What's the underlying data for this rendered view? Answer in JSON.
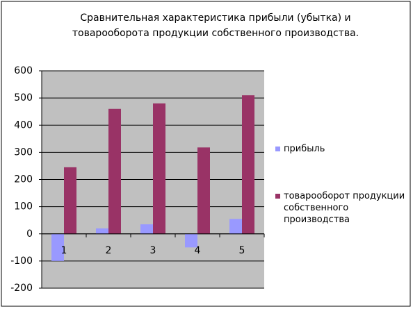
{
  "chart_data": {
    "type": "bar",
    "title": [
      "Сравнительная характеристика прибыли (убытка) и",
      "товарооборота продукции собственного производства."
    ],
    "categories": [
      "1",
      "2",
      "3",
      "4",
      "5"
    ],
    "series": [
      {
        "name": "прибыль",
        "color": "#9999ff",
        "values": [
          -100,
          20,
          35,
          -50,
          55
        ]
      },
      {
        "name": "товарооборот продукции собственного производства",
        "color": "#993366",
        "values": [
          245,
          460,
          480,
          318,
          510
        ]
      }
    ],
    "ylim": [
      -200,
      600
    ],
    "yticks": [
      -200,
      -100,
      0,
      100,
      200,
      300,
      400,
      500,
      600
    ],
    "grid": true,
    "legend": "right"
  }
}
